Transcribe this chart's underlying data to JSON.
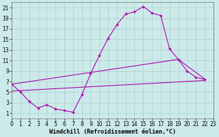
{
  "bg_color": "#cdeaea",
  "line_color": "#aa00aa",
  "grid_color": "#aacccc",
  "xlim": [
    0,
    23
  ],
  "ylim": [
    0,
    22
  ],
  "xticks": [
    0,
    1,
    2,
    3,
    4,
    5,
    6,
    7,
    8,
    9,
    10,
    11,
    12,
    13,
    14,
    15,
    16,
    17,
    18,
    19,
    20,
    21,
    22,
    23
  ],
  "yticks": [
    1,
    3,
    5,
    7,
    9,
    11,
    13,
    15,
    17,
    19,
    21
  ],
  "xlabel": "Windchill (Refroidissement éolien,°C)",
  "curve_x": [
    0,
    1,
    2,
    3,
    4,
    5,
    6,
    7,
    8,
    9,
    10,
    11,
    12,
    13,
    14,
    15,
    16,
    17,
    18,
    19,
    20,
    21,
    22
  ],
  "curve_y": [
    6.5,
    5.0,
    3.2,
    2.0,
    2.6,
    1.8,
    1.5,
    1.2,
    4.5,
    8.5,
    12.0,
    15.2,
    17.8,
    19.8,
    20.2,
    21.2,
    20.0,
    19.5,
    13.2,
    11.2,
    9.0,
    7.8,
    7.4
  ],
  "upper_line_x": [
    0,
    19,
    22
  ],
  "upper_line_y": [
    6.5,
    11.2,
    7.5
  ],
  "lower_line_x": [
    0,
    22
  ],
  "lower_line_y": [
    5.2,
    7.2
  ],
  "tick_fontsize": 5.5,
  "label_fontsize": 6.0
}
